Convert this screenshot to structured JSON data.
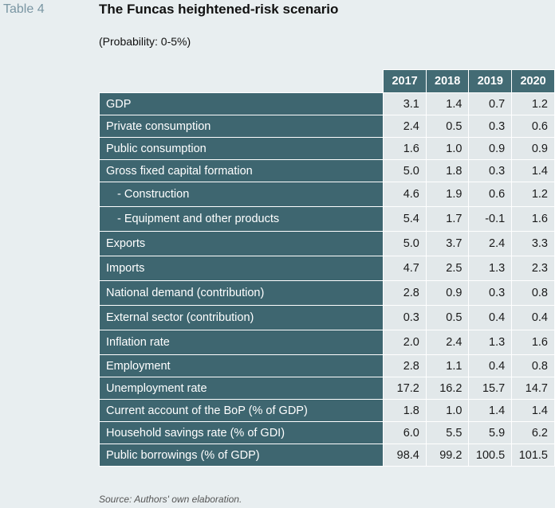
{
  "header": {
    "table_label": "Table 4",
    "title": "The Funcas heightened-risk scenario",
    "subtitle": "(Probability: 0-5%)"
  },
  "table": {
    "columns": [
      "2017",
      "2018",
      "2019",
      "2020"
    ],
    "rows": [
      {
        "label": "GDP",
        "values": [
          "3.1",
          "1.4",
          "0.7",
          "1.2"
        ]
      },
      {
        "label": "Private consumption",
        "values": [
          "2.4",
          "0.5",
          "0.3",
          "0.6"
        ]
      },
      {
        "label": "Public consumption",
        "values": [
          "1.6",
          "1.0",
          "0.9",
          "0.9"
        ]
      },
      {
        "label": "Gross fixed capital formation",
        "values": [
          "5.0",
          "1.8",
          "0.3",
          "1.4"
        ]
      },
      {
        "label": "- Construction",
        "values": [
          "4.6",
          "1.9",
          "0.6",
          "1.2"
        ]
      },
      {
        "label": "- Equipment and other products",
        "values": [
          "5.4",
          "1.7",
          "-0.1",
          "1.6"
        ]
      },
      {
        "label": "Exports",
        "values": [
          "5.0",
          "3.7",
          "2.4",
          "3.3"
        ]
      },
      {
        "label": "Imports",
        "values": [
          "4.7",
          "2.5",
          "1.3",
          "2.3"
        ]
      },
      {
        "label": "National demand (contribution)",
        "values": [
          "2.8",
          "0.9",
          "0.3",
          "0.8"
        ]
      },
      {
        "label": "External sector (contribution)",
        "values": [
          "0.3",
          "0.5",
          "0.4",
          "0.4"
        ]
      },
      {
        "label": "Inflation rate",
        "values": [
          "2.0",
          "2.4",
          "1.3",
          "1.6"
        ]
      },
      {
        "label": "Employment",
        "values": [
          "2.8",
          "1.1",
          "0.4",
          "0.8"
        ]
      },
      {
        "label": "Unemployment rate",
        "values": [
          "17.2",
          "16.2",
          "15.7",
          "14.7"
        ]
      },
      {
        "label": "Current account of the BoP (% of GDP)",
        "values": [
          "1.8",
          "1.0",
          "1.4",
          "1.4"
        ]
      },
      {
        "label": "Household savings rate (% of GDI)",
        "values": [
          "6.0",
          "5.5",
          "5.9",
          "6.2"
        ]
      },
      {
        "label": "Public borrowings (% of GDP)",
        "values": [
          "98.4",
          "99.2",
          "100.5",
          "101.5"
        ]
      }
    ]
  },
  "footer": {
    "source": "Source: Authors' own elaboration."
  },
  "colors": {
    "label_cell": "#3e6670",
    "header_cell": "#436b74",
    "value_cell": "#e2e8ea",
    "background": "#e8eef0"
  }
}
